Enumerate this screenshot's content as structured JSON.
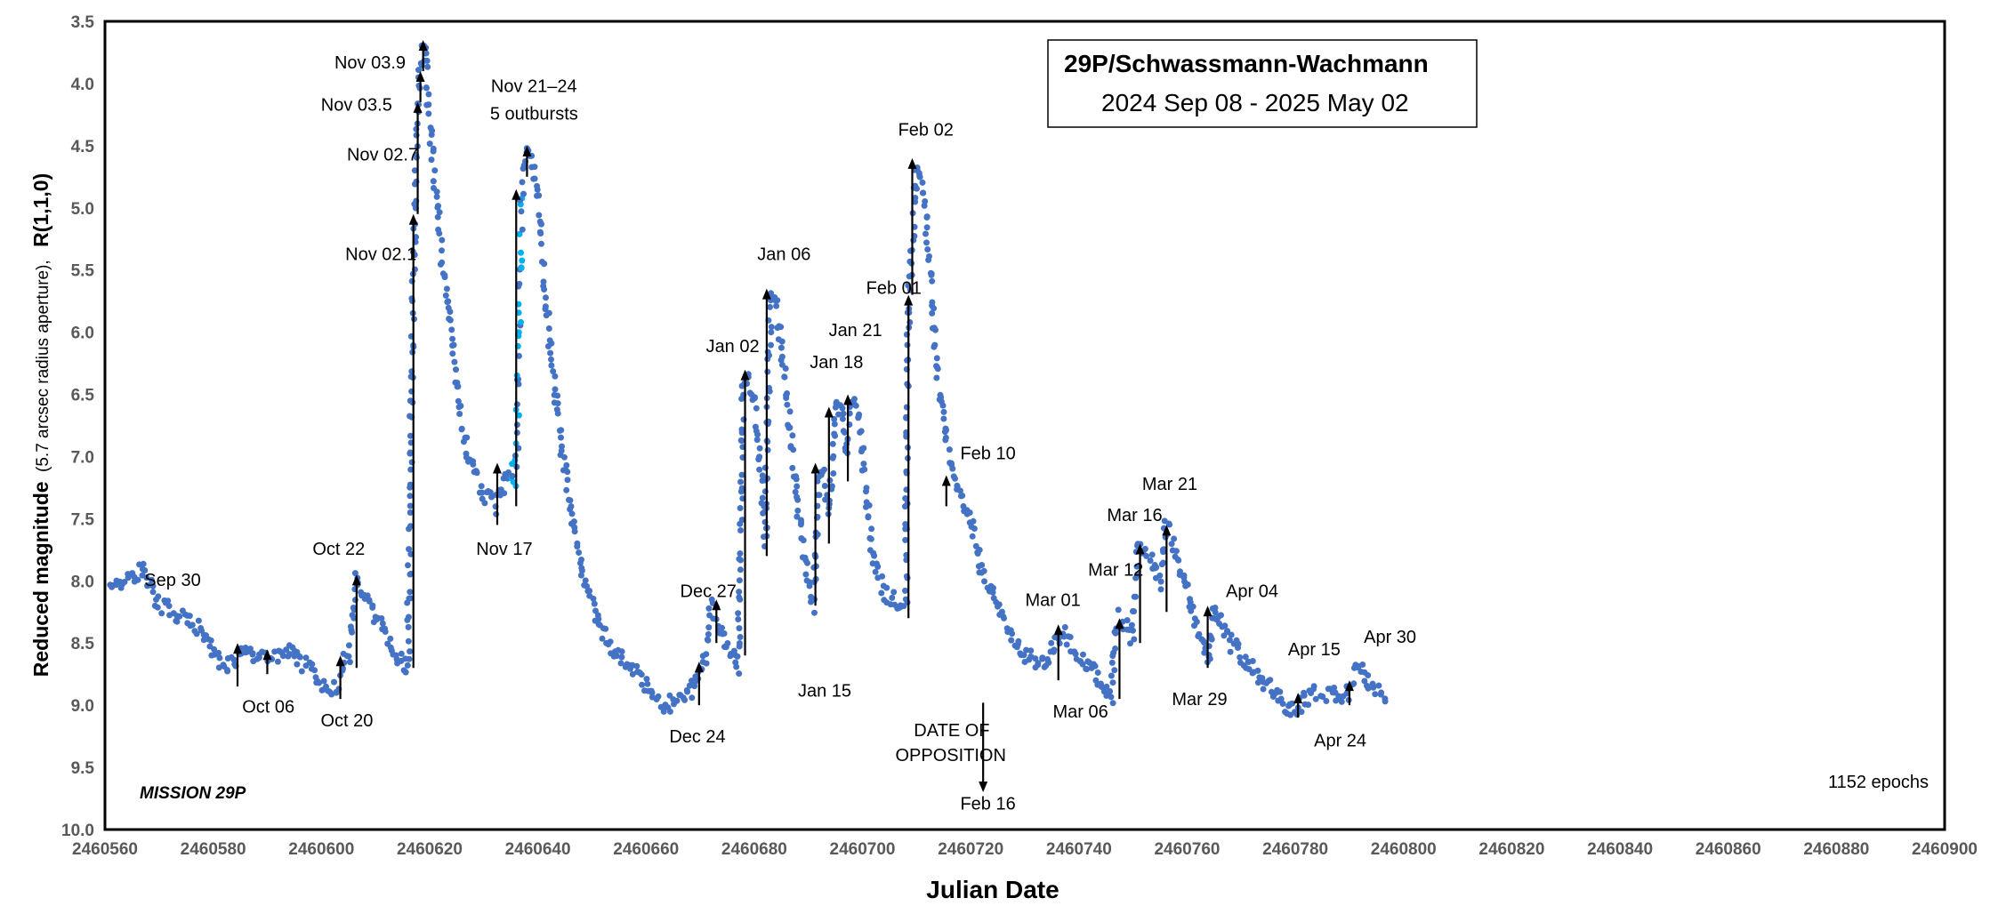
{
  "chart_data": {
    "type": "scatter",
    "title": "29P/Schwassmann-Wachmann",
    "subtitle": "2024 Sep 08 - 2025 May 02",
    "xlabel": "Julian Date",
    "ylabel_main": "Reduced magnitude",
    "ylabel_small": "(5.7 arcsec radius aperture),",
    "ylabel_end": "R(1,1,0)",
    "xlim": [
      2460560,
      2460900
    ],
    "ylim": [
      10.0,
      3.5
    ],
    "y_inverted": true,
    "x_ticks": [
      "2460560",
      "2460580",
      "2460600",
      "2460620",
      "2460640",
      "2460660",
      "2460680",
      "2460700",
      "2460720",
      "2460740",
      "2460760",
      "2460780",
      "2460800",
      "2460820",
      "2460840",
      "2460860",
      "2460880",
      "2460900"
    ],
    "y_ticks": [
      "3.5",
      "4.0",
      "4.5",
      "5.0",
      "5.5",
      "6.0",
      "6.5",
      "7.0",
      "7.5",
      "8.0",
      "8.5",
      "9.0",
      "9.5",
      "10.0"
    ],
    "grid": false,
    "legend": "none",
    "point_color": "#4472C4",
    "point_color_alt": "#00B0F0",
    "footer_left": "MISSION 29P",
    "footer_right": "1152  epochs",
    "curve_x": [
      2460561,
      2460567,
      2460570,
      2460575,
      2460578,
      2460582,
      2460584,
      2460586,
      2460588,
      2460590,
      2460592,
      2460594,
      2460596,
      2460598,
      2460600,
      2460602,
      2460603,
      2460604,
      2460605,
      2460606,
      2460606.5,
      2460607,
      2460608,
      2460610,
      2460612,
      2460614,
      2460616,
      2460617,
      2460617.5,
      2460618,
      2460618.5,
      2460619,
      2460620,
      2460622,
      2460624,
      2460626,
      2460628,
      2460630,
      2460632,
      2460634,
      2460635,
      2460636,
      2460637,
      2460637.5,
      2460638,
      2460639,
      2460640,
      2460642,
      2460644,
      2460646,
      2460648,
      2460650,
      2460652,
      2460654,
      2460656,
      2460658,
      2460660,
      2460662,
      2460664,
      2460666,
      2460668,
      2460670,
      2460671,
      2460672,
      2460673,
      2460674,
      2460676,
      2460677,
      2460678,
      2460678.5,
      2460679,
      2460680,
      2460681,
      2460682,
      2460683,
      2460684,
      2460686,
      2460688,
      2460690,
      2460691,
      2460692,
      2460693,
      2460694,
      2460695,
      2460696,
      2460697,
      2460698,
      2460699,
      2460700,
      2460702,
      2460704,
      2460706,
      2460708,
      2460708.5,
      2460709,
      2460710,
      2460711,
      2460712,
      2460713,
      2460714,
      2460716,
      2460718,
      2460720,
      2460722,
      2460724,
      2460726,
      2460728,
      2460730,
      2460732,
      2460734,
      2460736,
      2460737,
      2460738,
      2460740,
      2460742,
      2460744,
      2460746,
      2460747,
      2460748,
      2460749,
      2460750,
      2460751,
      2460752,
      2460753,
      2460754,
      2460755,
      2460756,
      2460757,
      2460758,
      2460760,
      2460762,
      2460764,
      2460765,
      2460766,
      2460768,
      2460770,
      2460772,
      2460774,
      2460776,
      2460778,
      2460780,
      2460782,
      2460784,
      2460786,
      2460788,
      2460790,
      2460791,
      2460792,
      2460794,
      2460796,
      2460797
    ],
    "curve_y": [
      8.1,
      7.9,
      8.2,
      8.3,
      8.4,
      8.7,
      8.65,
      8.5,
      8.6,
      8.65,
      8.6,
      8.55,
      8.65,
      8.7,
      8.85,
      8.9,
      8.85,
      8.65,
      8.6,
      8.2,
      7.95,
      8.0,
      8.1,
      8.3,
      8.45,
      8.6,
      8.7,
      5.5,
      4.5,
      4.1,
      3.75,
      3.65,
      4.3,
      5.3,
      6.0,
      6.8,
      7.1,
      7.3,
      7.4,
      7.2,
      7.1,
      7.2,
      4.9,
      4.7,
      4.55,
      4.6,
      4.9,
      6.0,
      6.8,
      7.4,
      7.9,
      8.2,
      8.4,
      8.55,
      8.65,
      8.75,
      8.85,
      8.95,
      9.0,
      8.95,
      8.9,
      8.7,
      8.6,
      8.2,
      8.3,
      8.4,
      8.6,
      8.7,
      6.4,
      6.35,
      6.4,
      6.6,
      7.0,
      7.7,
      5.7,
      5.75,
      6.5,
      7.4,
      8.0,
      8.2,
      7.1,
      7.2,
      7.4,
      6.6,
      6.6,
      7.0,
      6.55,
      6.6,
      7.0,
      7.8,
      8.1,
      8.15,
      8.2,
      5.8,
      5.4,
      4.65,
      4.8,
      5.2,
      5.8,
      6.4,
      7.0,
      7.3,
      7.5,
      7.9,
      8.1,
      8.3,
      8.5,
      8.6,
      8.65,
      8.7,
      8.45,
      8.4,
      8.5,
      8.6,
      8.7,
      8.8,
      8.95,
      8.3,
      8.35,
      8.4,
      8.45,
      7.7,
      7.75,
      7.8,
      7.9,
      8.0,
      7.55,
      7.6,
      7.8,
      8.1,
      8.4,
      8.65,
      8.2,
      8.3,
      8.5,
      8.6,
      8.7,
      8.8,
      8.9,
      9.0,
      9.05,
      8.95,
      8.9,
      8.9,
      8.95,
      8.9,
      8.65,
      8.7,
      8.85,
      8.9,
      8.95
    ],
    "arrows": [
      {
        "x": 2460584.5,
        "y1": 8.85,
        "y2": 8.5
      },
      {
        "x": 2460590,
        "y1": 8.75,
        "y2": 8.55
      },
      {
        "x": 2460603.5,
        "y1": 8.95,
        "y2": 8.6
      },
      {
        "x": 2460606.5,
        "y1": 8.7,
        "y2": 7.95
      },
      {
        "x": 2460617,
        "y1": 8.7,
        "y2": 5.05
      },
      {
        "x": 2460617.8,
        "y1": 5.05,
        "y2": 4.15
      },
      {
        "x": 2460618.3,
        "y1": 4.15,
        "y2": 3.9
      },
      {
        "x": 2460618.8,
        "y1": 3.9,
        "y2": 3.65
      },
      {
        "x": 2460632.5,
        "y1": 7.55,
        "y2": 7.05
      },
      {
        "x": 2460636,
        "y1": 7.4,
        "y2": 4.85
      },
      {
        "x": 2460638,
        "y1": 4.75,
        "y2": 4.5
      },
      {
        "x": 2460669.8,
        "y1": 9.0,
        "y2": 8.65
      },
      {
        "x": 2460673,
        "y1": 8.5,
        "y2": 8.15
      },
      {
        "x": 2460678.3,
        "y1": 8.6,
        "y2": 6.3
      },
      {
        "x": 2460682.3,
        "y1": 7.8,
        "y2": 5.65
      },
      {
        "x": 2460691.3,
        "y1": 8.2,
        "y2": 7.05
      },
      {
        "x": 2460693.8,
        "y1": 7.7,
        "y2": 6.6
      },
      {
        "x": 2460697.3,
        "y1": 7.2,
        "y2": 6.5
      },
      {
        "x": 2460708.5,
        "y1": 8.3,
        "y2": 5.7
      },
      {
        "x": 2460709.2,
        "y1": 5.7,
        "y2": 4.6
      },
      {
        "x": 2460715.5,
        "y1": 7.4,
        "y2": 7.15
      },
      {
        "x": 2460736.2,
        "y1": 8.8,
        "y2": 8.35
      },
      {
        "x": 2460747.5,
        "y1": 8.95,
        "y2": 8.3
      },
      {
        "x": 2460751.3,
        "y1": 8.5,
        "y2": 7.7
      },
      {
        "x": 2460756.2,
        "y1": 8.25,
        "y2": 7.55
      },
      {
        "x": 2460763.8,
        "y1": 8.7,
        "y2": 8.2
      },
      {
        "x": 2460780.5,
        "y1": 9.1,
        "y2": 8.9
      },
      {
        "x": 2460790,
        "y1": 9.0,
        "y2": 8.8
      }
    ],
    "opposition_arrow": {
      "x": 2460722.3,
      "y1": 8.98,
      "y2": 9.7
    },
    "annotations": [
      {
        "text": "Sep 30",
        "x": 2460572.5,
        "y": 8.04
      },
      {
        "text": "Oct 06",
        "x": 2460590.2,
        "y": 9.06
      },
      {
        "text": "Oct 20",
        "x": 2460604.7,
        "y": 9.17
      },
      {
        "text": "Oct 22",
        "x": 2460603.2,
        "y": 7.79
      },
      {
        "text": "Nov 02.1",
        "x": 2460611,
        "y": 5.42
      },
      {
        "text": "Nov 02.7",
        "x": 2460611.3,
        "y": 4.62
      },
      {
        "text": "Nov 03.5",
        "x": 2460606.5,
        "y": 4.22
      },
      {
        "text": "Nov 03.9",
        "x": 2460609,
        "y": 3.88
      },
      {
        "text": "Nov 21–24",
        "x": 2460639.3,
        "y": 4.07
      },
      {
        "text": "5 outbursts",
        "x": 2460639.3,
        "y": 4.29
      },
      {
        "text": "Nov 17",
        "x": 2460633.8,
        "y": 7.79
      },
      {
        "text": "Dec 24",
        "x": 2460669.5,
        "y": 9.3
      },
      {
        "text": "Dec 27",
        "x": 2460671.5,
        "y": 8.13
      },
      {
        "text": "Jan 02",
        "x": 2460676,
        "y": 6.16
      },
      {
        "text": "Jan 06",
        "x": 2460685.5,
        "y": 5.42
      },
      {
        "text": "Jan 15",
        "x": 2460693,
        "y": 8.93
      },
      {
        "text": "Jan 18",
        "x": 2460695.2,
        "y": 6.29
      },
      {
        "text": "Jan 21",
        "x": 2460698.7,
        "y": 6.03
      },
      {
        "text": "Feb 01",
        "x": 2460705.8,
        "y": 5.69
      },
      {
        "text": "Feb 02",
        "x": 2460711.7,
        "y": 4.42
      },
      {
        "text": "Feb 10",
        "x": 2460723.2,
        "y": 7.02
      },
      {
        "text": "DATE OF",
        "x": 2460716.5,
        "y": 9.25
      },
      {
        "text": "OPPOSITION",
        "x": 2460716.3,
        "y": 9.45
      },
      {
        "text": "Feb 16",
        "x": 2460723.2,
        "y": 9.84
      },
      {
        "text": "Mar 01",
        "x": 2460735.2,
        "y": 8.2
      },
      {
        "text": "Mar 06",
        "x": 2460740.3,
        "y": 9.1
      },
      {
        "text": "Mar 12",
        "x": 2460746.8,
        "y": 7.96
      },
      {
        "text": "Mar 16",
        "x": 2460750.3,
        "y": 7.52
      },
      {
        "text": "Mar 21",
        "x": 2460756.8,
        "y": 7.27
      },
      {
        "text": "Mar 29",
        "x": 2460762.3,
        "y": 9.0
      },
      {
        "text": "Apr 04",
        "x": 2460772,
        "y": 8.13
      },
      {
        "text": "Apr 15",
        "x": 2460783.5,
        "y": 8.6
      },
      {
        "text": "Apr 24",
        "x": 2460788.3,
        "y": 9.33
      },
      {
        "text": "Apr 30",
        "x": 2460797.5,
        "y": 8.5
      }
    ]
  }
}
